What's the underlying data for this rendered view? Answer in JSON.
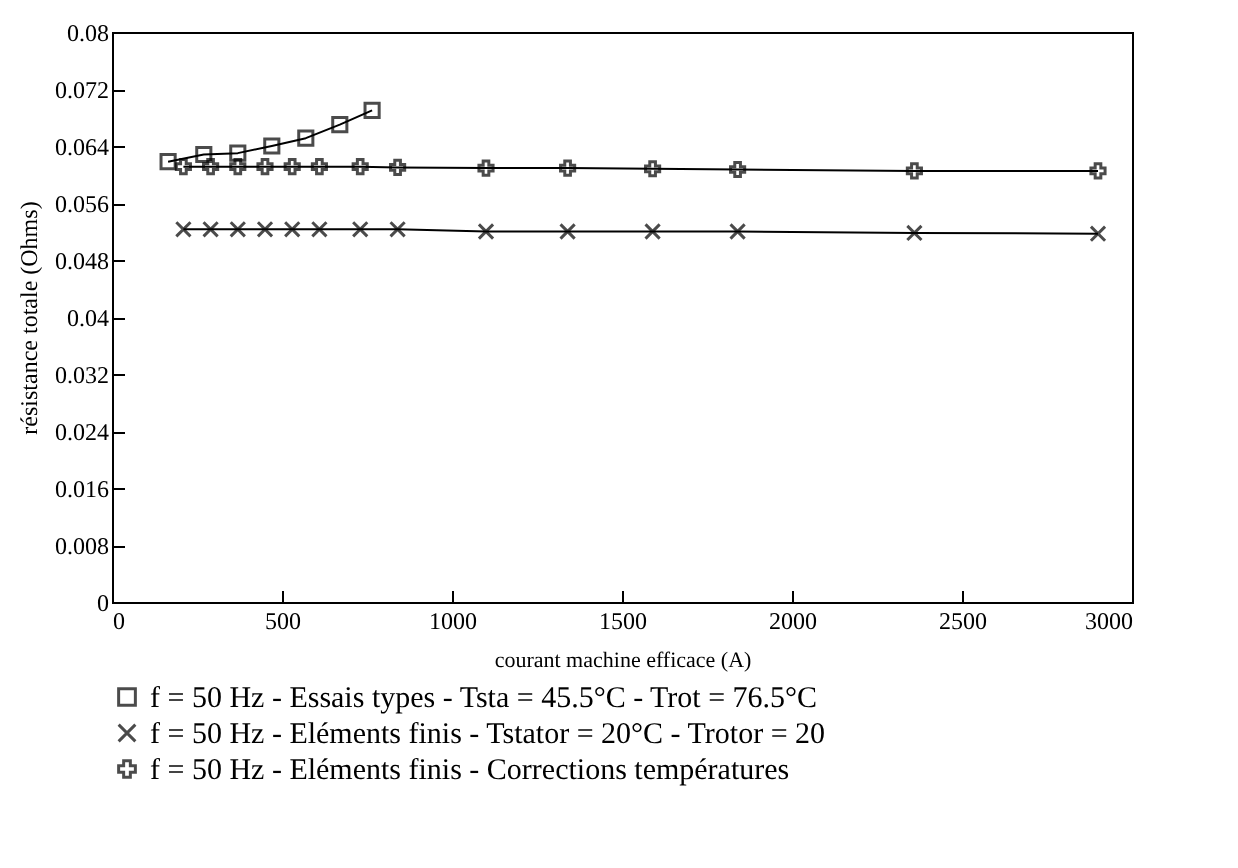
{
  "chart_data": {
    "type": "line",
    "xlabel": "courant machine efficace (A)",
    "ylabel": "résistance totale (Ohms)",
    "xlim": [
      0,
      3000
    ],
    "xticks": [
      0,
      500,
      1000,
      1500,
      2000,
      2500,
      3000
    ],
    "ylim": [
      0,
      0.08
    ],
    "yticks": [
      0,
      0.008,
      0.016,
      0.024,
      0.032,
      0.04,
      0.048,
      0.056,
      0.064,
      0.072,
      0.08
    ],
    "grid": false,
    "legend": "bottom",
    "series": [
      {
        "name": "f = 50 Hz - Essais types - Tsta = 45.5°C - Trot = 76.5°C",
        "color": "#000000",
        "marker": "square",
        "x": [
          165,
          270,
          370,
          470,
          570,
          670,
          765
        ],
        "values": [
          0.0618,
          0.0628,
          0.063,
          0.064,
          0.0651,
          0.067,
          0.069
        ]
      },
      {
        "name": "f = 50 Hz -  Eléments finis - Tstator = 20°C - Trotor = 20",
        "color": "#000000",
        "marker": "cross",
        "x": [
          210,
          290,
          370,
          450,
          530,
          610,
          730,
          840,
          1100,
          1340,
          1590,
          1840,
          2360,
          2900
        ],
        "values": [
          0.0523,
          0.0523,
          0.0523,
          0.0523,
          0.0523,
          0.0523,
          0.0523,
          0.0523,
          0.052,
          0.052,
          0.052,
          0.052,
          0.0518,
          0.0517
        ]
      },
      {
        "name": "f = 50 Hz -  Eléments finis - Corrections températures",
        "color": "#000000",
        "marker": "plus",
        "x": [
          210,
          290,
          370,
          450,
          530,
          610,
          730,
          840,
          1100,
          1340,
          1590,
          1840,
          2360,
          2900
        ],
        "values": [
          0.0611,
          0.0611,
          0.0611,
          0.0611,
          0.0611,
          0.0611,
          0.0611,
          0.061,
          0.0609,
          0.0609,
          0.0608,
          0.0607,
          0.0605,
          0.0605
        ]
      }
    ]
  }
}
